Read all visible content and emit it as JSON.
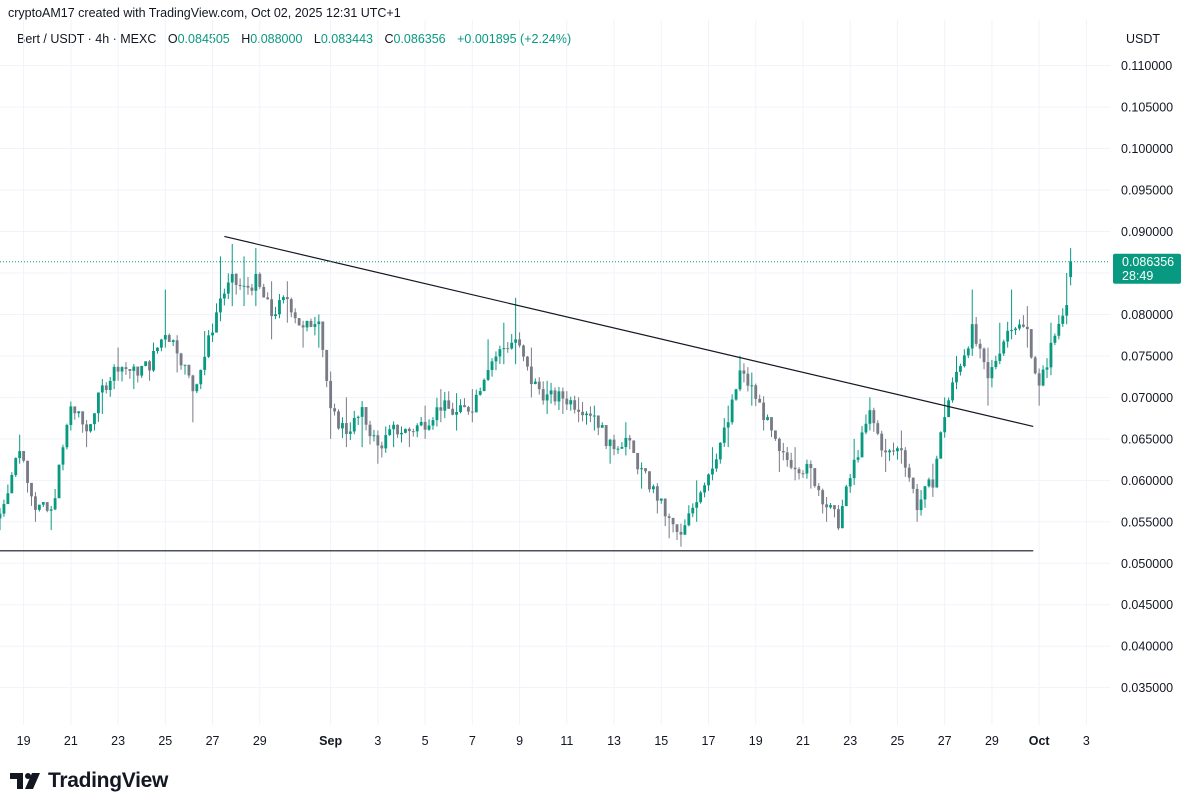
{
  "attribution": "cryptoAM17 created with TradingView.com, Oct 02, 2025 12:31 UTC+1",
  "legend": {
    "symbol": "Bert / USDT · 4h · MEXC",
    "o_label": "O",
    "o_value": "0.084505",
    "h_label": "H",
    "h_value": "0.088000",
    "l_label": "L",
    "l_value": "0.083443",
    "c_label": "C",
    "c_value": "0.086356",
    "change": "+0.001895 (+2.24%)"
  },
  "currency": "USDT",
  "price_badge": {
    "price": "0.086356",
    "countdown": "28:49"
  },
  "logo": {
    "icon": "tradingview-logo-icon",
    "text": "TradingView"
  },
  "colors": {
    "up": "#089981",
    "down": "#787b86",
    "text": "#131722",
    "grid": "#f0f3fa",
    "line": "#131722"
  },
  "chart_data": {
    "type": "candlestick",
    "ylim": [
      0.0305,
      0.1155
    ],
    "yticks": [
      "0.110000",
      "0.105000",
      "0.100000",
      "0.095000",
      "0.090000",
      "0.085000",
      "0.080000",
      "0.075000",
      "0.070000",
      "0.065000",
      "0.060000",
      "0.055000",
      "0.050000",
      "0.045000",
      "0.040000",
      "0.035000"
    ],
    "xlim": [
      "2025-08-18",
      "2025-10-04"
    ],
    "xticks": [
      {
        "date": "2025-08-19",
        "label": "19"
      },
      {
        "date": "2025-08-21",
        "label": "21"
      },
      {
        "date": "2025-08-23",
        "label": "23"
      },
      {
        "date": "2025-08-25",
        "label": "25"
      },
      {
        "date": "2025-08-27",
        "label": "27"
      },
      {
        "date": "2025-08-29",
        "label": "29"
      },
      {
        "date": "2025-09-01",
        "label": "Sep",
        "bold": true
      },
      {
        "date": "2025-09-03",
        "label": "3"
      },
      {
        "date": "2025-09-05",
        "label": "5"
      },
      {
        "date": "2025-09-07",
        "label": "7"
      },
      {
        "date": "2025-09-09",
        "label": "9"
      },
      {
        "date": "2025-09-11",
        "label": "11"
      },
      {
        "date": "2025-09-13",
        "label": "13"
      },
      {
        "date": "2025-09-15",
        "label": "15"
      },
      {
        "date": "2025-09-17",
        "label": "17"
      },
      {
        "date": "2025-09-19",
        "label": "19"
      },
      {
        "date": "2025-09-21",
        "label": "21"
      },
      {
        "date": "2025-09-23",
        "label": "23"
      },
      {
        "date": "2025-09-25",
        "label": "25"
      },
      {
        "date": "2025-09-27",
        "label": "27"
      },
      {
        "date": "2025-09-29",
        "label": "29"
      },
      {
        "date": "2025-10-01",
        "label": "Oct",
        "bold": true
      },
      {
        "date": "2025-10-03",
        "label": "3"
      }
    ],
    "last_price": 0.086356,
    "trendlines": [
      {
        "kind": "descending-resistance",
        "from": {
          "date": "2025-08-27T12:00",
          "price": 0.0894
        },
        "to": {
          "date": "2025-09-30T18:00",
          "price": 0.0665
        }
      },
      {
        "kind": "horizontal-support",
        "from": {
          "date": "2025-08-18T00:00",
          "price": 0.0515
        },
        "to": {
          "date": "2025-09-30T18:00",
          "price": 0.0515
        }
      }
    ],
    "anchors": [
      [
        "2025-08-18T00:00",
        0.0565,
        0.056,
        0.054
      ],
      [
        "2025-08-18T20:00",
        0.0655,
        0.064,
        0.062
      ],
      [
        "2025-08-19T12:00",
        0.0565,
        0.057,
        0.055
      ],
      [
        "2025-08-20T04:00",
        0.0565,
        0.056,
        0.054
      ],
      [
        "2025-08-21T00:00",
        0.0695,
        0.069,
        0.066
      ],
      [
        "2025-08-21T16:00",
        0.0655,
        0.066,
        0.064
      ],
      [
        "2025-08-22T08:00",
        0.0705,
        0.071,
        0.068
      ],
      [
        "2025-08-23T00:00",
        0.076,
        0.074,
        0.072
      ],
      [
        "2025-08-23T16:00",
        0.0725,
        0.073,
        0.071
      ],
      [
        "2025-08-24T08:00",
        0.0745,
        0.074,
        0.072
      ],
      [
        "2025-08-25T00:00",
        0.083,
        0.078,
        0.076
      ],
      [
        "2025-08-25T12:00",
        0.0775,
        0.076,
        0.073
      ],
      [
        "2025-08-26T04:00",
        0.069,
        0.071,
        0.067
      ],
      [
        "2025-08-26T16:00",
        0.078,
        0.075,
        0.073
      ],
      [
        "2025-08-27T08:00",
        0.087,
        0.082,
        0.08
      ],
      [
        "2025-08-27T20:00",
        0.0885,
        0.084,
        0.081
      ],
      [
        "2025-08-28T08:00",
        0.087,
        0.083,
        0.081
      ],
      [
        "2025-08-28T20:00",
        0.088,
        0.084,
        0.081
      ],
      [
        "2025-08-29T12:00",
        0.084,
        0.08,
        0.077
      ],
      [
        "2025-08-30T04:00",
        0.084,
        0.082,
        0.079
      ],
      [
        "2025-08-30T20:00",
        0.079,
        0.078,
        0.076
      ],
      [
        "2025-08-31T12:00",
        0.08,
        0.08,
        0.076
      ],
      [
        "2025-09-01T00:00",
        0.069,
        0.068,
        0.065
      ],
      [
        "2025-09-01T16:00",
        0.07,
        0.066,
        0.064
      ],
      [
        "2025-09-02T08:00",
        0.069,
        0.068,
        0.064
      ],
      [
        "2025-09-03T00:00",
        0.066,
        0.064,
        0.062
      ],
      [
        "2025-09-03T16:00",
        0.067,
        0.066,
        0.064
      ],
      [
        "2025-09-04T08:00",
        0.066,
        0.066,
        0.064
      ],
      [
        "2025-09-05T00:00",
        0.069,
        0.067,
        0.065
      ],
      [
        "2025-09-05T16:00",
        0.071,
        0.069,
        0.067
      ],
      [
        "2025-09-06T08:00",
        0.0705,
        0.068,
        0.066
      ],
      [
        "2025-09-07T00:00",
        0.071,
        0.069,
        0.067
      ],
      [
        "2025-09-07T16:00",
        0.077,
        0.074,
        0.072
      ],
      [
        "2025-09-08T08:00",
        0.079,
        0.076,
        0.074
      ],
      [
        "2025-09-08T20:00",
        0.082,
        0.077,
        0.074
      ],
      [
        "2025-09-09T12:00",
        0.076,
        0.072,
        0.07
      ],
      [
        "2025-09-10T04:00",
        0.072,
        0.07,
        0.068
      ],
      [
        "2025-09-10T20:00",
        0.071,
        0.07,
        0.068
      ],
      [
        "2025-09-11T12:00",
        0.07,
        0.069,
        0.067
      ],
      [
        "2025-09-12T04:00",
        0.069,
        0.068,
        0.066
      ],
      [
        "2025-09-12T20:00",
        0.065,
        0.064,
        0.062
      ],
      [
        "2025-09-13T12:00",
        0.067,
        0.065,
        0.063
      ],
      [
        "2025-09-14T04:00",
        0.061,
        0.061,
        0.059
      ],
      [
        "2025-09-14T20:00",
        0.059,
        0.058,
        0.056
      ],
      [
        "2025-09-15T08:00",
        0.056,
        0.055,
        0.053
      ],
      [
        "2025-09-15T20:00",
        0.054,
        0.053,
        0.052
      ],
      [
        "2025-09-16T12:00",
        0.06,
        0.058,
        0.055
      ],
      [
        "2025-09-17T04:00",
        0.064,
        0.062,
        0.06
      ],
      [
        "2025-09-17T20:00",
        0.069,
        0.067,
        0.064
      ],
      [
        "2025-09-18T08:00",
        0.075,
        0.073,
        0.071
      ],
      [
        "2025-09-18T20:00",
        0.073,
        0.071,
        0.069
      ],
      [
        "2025-09-19T08:00",
        0.069,
        0.068,
        0.066
      ],
      [
        "2025-09-20T00:00",
        0.065,
        0.063,
        0.061
      ],
      [
        "2025-09-20T16:00",
        0.064,
        0.062,
        0.06
      ],
      [
        "2025-09-21T08:00",
        0.062,
        0.061,
        0.059
      ],
      [
        "2025-09-22T00:00",
        0.058,
        0.057,
        0.055
      ],
      [
        "2025-09-22T12:00",
        0.056,
        0.055,
        0.054
      ],
      [
        "2025-09-23T04:00",
        0.065,
        0.062,
        0.06
      ],
      [
        "2025-09-23T20:00",
        0.07,
        0.068,
        0.066
      ],
      [
        "2025-09-24T12:00",
        0.065,
        0.063,
        0.061
      ],
      [
        "2025-09-25T04:00",
        0.066,
        0.064,
        0.062
      ],
      [
        "2025-09-25T20:00",
        0.058,
        0.057,
        0.055
      ],
      [
        "2025-09-26T12:00",
        0.062,
        0.06,
        0.058
      ],
      [
        "2025-09-27T00:00",
        0.07,
        0.068,
        0.066
      ],
      [
        "2025-09-27T12:00",
        0.075,
        0.073,
        0.071
      ],
      [
        "2025-09-28T04:00",
        0.083,
        0.078,
        0.075
      ],
      [
        "2025-09-28T20:00",
        0.076,
        0.072,
        0.069
      ],
      [
        "2025-09-29T08:00",
        0.079,
        0.076,
        0.074
      ],
      [
        "2025-09-29T20:00",
        0.083,
        0.079,
        0.077
      ],
      [
        "2025-09-30T12:00",
        0.081,
        0.078,
        0.076
      ],
      [
        "2025-10-01T00:00",
        0.072,
        0.071,
        0.069
      ],
      [
        "2025-10-01T12:00",
        0.079,
        0.076,
        0.074
      ],
      [
        "2025-10-02T04:00",
        0.085,
        0.082,
        0.08
      ],
      [
        "2025-10-02T08:00",
        0.088,
        0.0864,
        0.0835
      ]
    ]
  }
}
